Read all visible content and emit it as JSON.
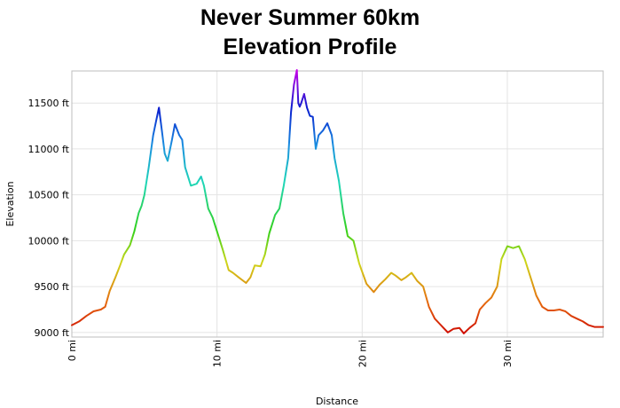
{
  "chart_data": {
    "type": "line",
    "title": [
      "Never Summer 60km",
      "Elevation Profile"
    ],
    "xlabel": "Distance",
    "ylabel": "Elevation",
    "xlim": [
      0,
      36.6
    ],
    "ylim": [
      8950,
      11850
    ],
    "x_ticks": [
      0,
      10,
      20,
      30
    ],
    "x_tick_labels": [
      "0 mi",
      "10 mi",
      "20 mi",
      "30 mi"
    ],
    "y_ticks": [
      9000,
      9500,
      10000,
      10500,
      11000,
      11500
    ],
    "y_tick_labels": [
      "9000 ft",
      "9500 ft",
      "10000 ft",
      "10500 ft",
      "11000 ft",
      "11500 ft"
    ],
    "grid": true,
    "color_scale": "elevation gradient: red (low) → orange → yellow → green → cyan → blue → violet (high)",
    "series": [
      {
        "x": [
          0,
          0.5,
          1,
          1.5,
          2,
          2.3,
          2.6,
          3,
          3.3,
          3.6,
          4,
          4.3,
          4.6,
          4.8,
          5,
          5.3,
          5.6,
          5.8,
          6,
          6.2,
          6.4,
          6.6,
          6.9,
          7.1,
          7.4,
          7.6,
          7.8,
          8.2,
          8.6,
          8.9,
          9.1,
          9.4,
          9.7,
          10,
          10.4,
          10.8,
          11.1,
          11.5,
          12,
          12.3,
          12.6,
          13,
          13.3,
          13.6,
          14,
          14.3,
          14.6,
          14.9,
          15.1,
          15.3,
          15.5,
          15.6,
          15.7,
          15.8,
          16,
          16.2,
          16.4,
          16.6,
          16.8,
          17,
          17.3,
          17.6,
          17.9,
          18.1,
          18.4,
          18.7,
          19,
          19.4,
          19.8,
          20.3,
          20.8,
          21.2,
          21.6,
          22,
          22.3,
          22.7,
          23,
          23.4,
          23.8,
          24.2,
          24.6,
          25,
          25.3,
          25.6,
          25.9,
          26.3,
          26.7,
          27,
          27.4,
          27.8,
          28.1,
          28.5,
          28.9,
          29.3,
          29.6,
          30,
          30.4,
          30.8,
          31.2,
          31.6,
          32,
          32.4,
          32.8,
          33.2,
          33.6,
          34,
          34.4,
          34.8,
          35.2,
          35.6,
          36,
          36.3,
          36.6
        ],
        "y": [
          9080,
          9120,
          9180,
          9230,
          9250,
          9280,
          9450,
          9600,
          9720,
          9850,
          9950,
          10100,
          10300,
          10380,
          10500,
          10800,
          11150,
          11300,
          11450,
          11200,
          10950,
          10870,
          11100,
          11270,
          11150,
          11100,
          10800,
          10600,
          10620,
          10700,
          10600,
          10350,
          10250,
          10100,
          9900,
          9680,
          9650,
          9600,
          9540,
          9600,
          9730,
          9720,
          9850,
          10080,
          10280,
          10350,
          10600,
          10900,
          11400,
          11700,
          11860,
          11500,
          11460,
          11500,
          11600,
          11450,
          11360,
          11350,
          11000,
          11150,
          11200,
          11280,
          11150,
          10900,
          10650,
          10300,
          10050,
          10000,
          9750,
          9530,
          9440,
          9520,
          9580,
          9650,
          9620,
          9570,
          9600,
          9650,
          9560,
          9500,
          9280,
          9150,
          9100,
          9050,
          9000,
          9040,
          9050,
          8990,
          9050,
          9100,
          9250,
          9320,
          9380,
          9500,
          9800,
          9940,
          9920,
          9940,
          9800,
          9600,
          9400,
          9280,
          9240,
          9240,
          9250,
          9230,
          9180,
          9150,
          9120,
          9080,
          9060,
          9060,
          9060
        ]
      }
    ]
  }
}
